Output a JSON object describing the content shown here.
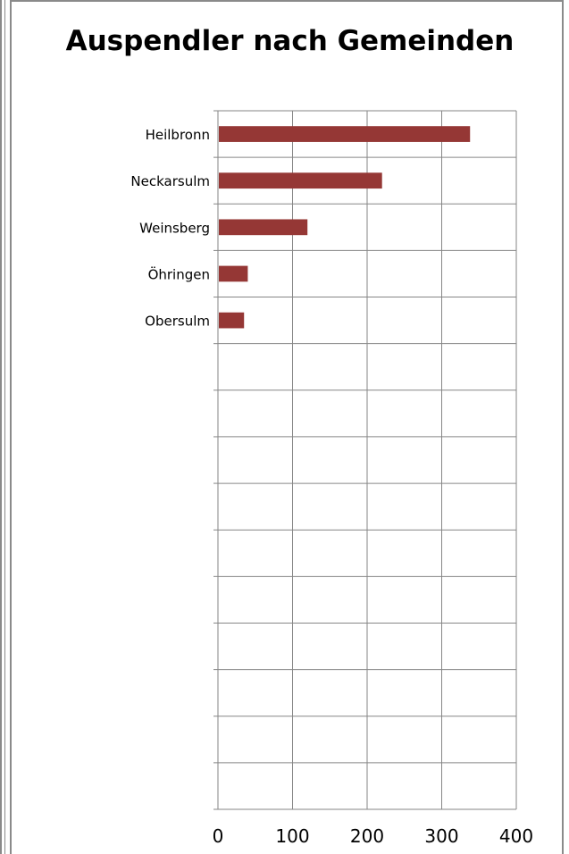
{
  "chart_data": {
    "type": "bar",
    "orientation": "horizontal",
    "title": "Auspendler nach Gemeinden",
    "xlabel": "",
    "ylabel": "",
    "categories": [
      "Heilbronn",
      "Neckarsulm",
      "Weinsberg",
      "Öhringen",
      "Obersulm",
      "",
      "",
      "",
      "",
      "",
      "",
      "",
      "",
      "",
      ""
    ],
    "values": [
      338,
      220,
      120,
      40,
      35,
      null,
      null,
      null,
      null,
      null,
      null,
      null,
      null,
      null,
      null
    ],
    "xlim": [
      0,
      400
    ],
    "xticks": [
      "0",
      "100",
      "200",
      "300",
      "400"
    ],
    "grid": true,
    "legend": "none",
    "bar_color": "#953735"
  }
}
